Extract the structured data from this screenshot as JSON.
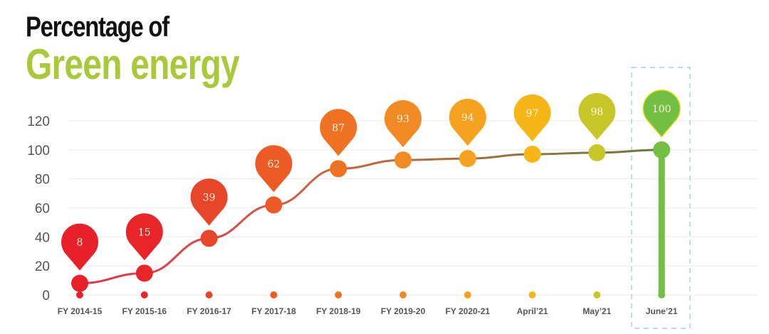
{
  "title": {
    "line1": "Percentage of",
    "line2": "Green energy"
  },
  "colors": {
    "title_green": "#a9c83a",
    "highlight_box": "#8ccbd0",
    "grid": "#eeeeee",
    "line_start": "#e8304a",
    "line_end": "#6b7a3a"
  },
  "chart_data": {
    "type": "line",
    "title": "Percentage of Green energy",
    "xlabel": "",
    "ylabel": "",
    "ylim": [
      0,
      120
    ],
    "yticks": [
      "0",
      "20",
      "40",
      "60",
      "80",
      "100",
      "120"
    ],
    "grid": true,
    "categories": [
      "FY 2014-15",
      "FY 2015-16",
      "FY 2016-17",
      "FY 2017-18",
      "FY 2018-19",
      "FY 2019-20",
      "FY 2020-21",
      "April’21",
      "May’21",
      "June’21"
    ],
    "values": [
      8,
      15,
      39,
      62,
      87,
      93,
      94,
      97,
      98,
      100
    ],
    "labels": [
      "8",
      "15",
      "39",
      "62",
      "87",
      "93",
      "94",
      "97",
      "98",
      "100"
    ],
    "point_colors": [
      "#e8202a",
      "#e8262a",
      "#e8462a",
      "#ec5a25",
      "#ef7222",
      "#f18a22",
      "#f4a21f",
      "#f6b618",
      "#c7c72a",
      "#72bf44"
    ],
    "highlighted_category": "June’21"
  }
}
